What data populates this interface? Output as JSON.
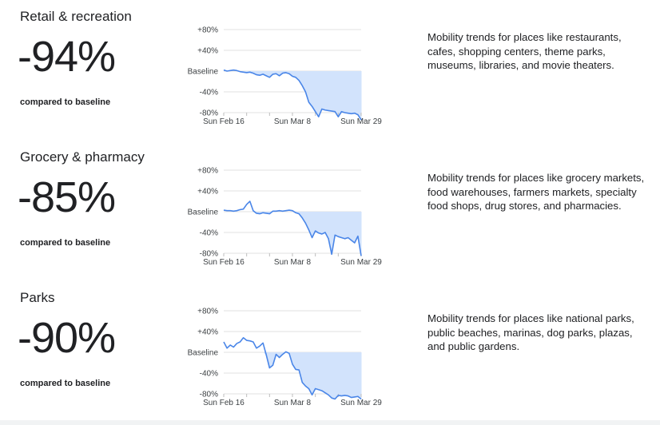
{
  "sections": [
    {
      "title": "Retail & recreation",
      "value": "-94%",
      "caption": "compared to baseline",
      "description": "Mobility trends for places like restaurants, cafes, shopping centers, theme parks, museums, libraries, and movie theaters."
    },
    {
      "title": "Grocery & pharmacy",
      "value": "-85%",
      "caption": "compared to baseline",
      "description": "Mobility trends for places like grocery markets, food warehouses, farmers markets, specialty food shops, drug stores, and pharmacies."
    },
    {
      "title": "Parks",
      "value": "-90%",
      "caption": "compared to baseline",
      "description": "Mobility trends for places like national parks, public beaches, marinas, dog parks, plazas, and public gardens."
    }
  ],
  "colors": {
    "line": "#4a86e8",
    "fill": "#d2e3fc",
    "grid": "#e0e0e0"
  },
  "chart_data": [
    {
      "type": "line",
      "title": "",
      "x_tick_labels": [
        "Sun Feb 16",
        "Sun Mar 8",
        "Sun Mar 29"
      ],
      "y_tick_labels": [
        "+80%",
        "+40%",
        "Baseline",
        "-40%",
        "-80%"
      ],
      "y_ticks": [
        80,
        40,
        0,
        -40,
        -80
      ],
      "ylim": [
        -80,
        80
      ],
      "x": [
        "2020-02-16",
        "2020-02-17",
        "2020-02-18",
        "2020-02-19",
        "2020-02-20",
        "2020-02-21",
        "2020-02-22",
        "2020-02-23",
        "2020-02-24",
        "2020-02-25",
        "2020-02-26",
        "2020-02-27",
        "2020-02-28",
        "2020-02-29",
        "2020-03-01",
        "2020-03-02",
        "2020-03-03",
        "2020-03-04",
        "2020-03-05",
        "2020-03-06",
        "2020-03-07",
        "2020-03-08",
        "2020-03-09",
        "2020-03-10",
        "2020-03-11",
        "2020-03-12",
        "2020-03-13",
        "2020-03-14",
        "2020-03-15",
        "2020-03-16",
        "2020-03-17",
        "2020-03-18",
        "2020-03-19",
        "2020-03-20",
        "2020-03-21",
        "2020-03-22",
        "2020-03-23",
        "2020-03-24",
        "2020-03-25",
        "2020-03-26",
        "2020-03-27",
        "2020-03-28",
        "2020-03-29"
      ],
      "values": [
        2,
        0,
        1,
        2,
        1,
        -1,
        -2,
        -3,
        -2,
        -4,
        -7,
        -8,
        -6,
        -9,
        -12,
        -6,
        -5,
        -9,
        -4,
        -3,
        -5,
        -10,
        -12,
        -18,
        -28,
        -40,
        -60,
        -68,
        -78,
        -88,
        -73,
        -75,
        -76,
        -77,
        -78,
        -88,
        -78,
        -80,
        -81,
        -82,
        -81,
        -84,
        -94
      ],
      "grid": true,
      "baseline_fill": true
    },
    {
      "type": "line",
      "title": "",
      "x_tick_labels": [
        "Sun Feb 16",
        "Sun Mar 8",
        "Sun Mar 29"
      ],
      "y_tick_labels": [
        "+80%",
        "+40%",
        "Baseline",
        "-40%",
        "-80%"
      ],
      "y_ticks": [
        80,
        40,
        0,
        -40,
        -80
      ],
      "ylim": [
        -80,
        80
      ],
      "x": [
        "2020-02-16",
        "2020-02-17",
        "2020-02-18",
        "2020-02-19",
        "2020-02-20",
        "2020-02-21",
        "2020-02-22",
        "2020-02-23",
        "2020-02-24",
        "2020-02-25",
        "2020-02-26",
        "2020-02-27",
        "2020-02-28",
        "2020-02-29",
        "2020-03-01",
        "2020-03-02",
        "2020-03-03",
        "2020-03-04",
        "2020-03-05",
        "2020-03-06",
        "2020-03-07",
        "2020-03-08",
        "2020-03-09",
        "2020-03-10",
        "2020-03-11",
        "2020-03-12",
        "2020-03-13",
        "2020-03-14",
        "2020-03-15",
        "2020-03-16",
        "2020-03-17",
        "2020-03-18",
        "2020-03-19",
        "2020-03-20",
        "2020-03-21",
        "2020-03-22",
        "2020-03-23",
        "2020-03-24",
        "2020-03-25",
        "2020-03-26",
        "2020-03-27",
        "2020-03-28",
        "2020-03-29"
      ],
      "values": [
        3,
        2,
        2,
        1,
        2,
        4,
        5,
        14,
        20,
        2,
        -3,
        -4,
        -2,
        -3,
        -4,
        1,
        1,
        2,
        1,
        2,
        3,
        2,
        -2,
        -4,
        -12,
        -22,
        -35,
        -50,
        -37,
        -41,
        -43,
        -40,
        -52,
        -82,
        -45,
        -48,
        -50,
        -52,
        -50,
        -55,
        -60,
        -47,
        -85
      ],
      "grid": true,
      "baseline_fill": true
    },
    {
      "type": "line",
      "title": "",
      "x_tick_labels": [
        "Sun Feb 16",
        "Sun Mar 8",
        "Sun Mar 29"
      ],
      "y_tick_labels": [
        "+80%",
        "+40%",
        "Baseline",
        "-40%",
        "-80%"
      ],
      "y_ticks": [
        80,
        40,
        0,
        -40,
        -80
      ],
      "ylim": [
        -80,
        80
      ],
      "x": [
        "2020-02-16",
        "2020-02-17",
        "2020-02-18",
        "2020-02-19",
        "2020-02-20",
        "2020-02-21",
        "2020-02-22",
        "2020-02-23",
        "2020-02-24",
        "2020-02-25",
        "2020-02-26",
        "2020-02-27",
        "2020-02-28",
        "2020-02-29",
        "2020-03-01",
        "2020-03-02",
        "2020-03-03",
        "2020-03-04",
        "2020-03-05",
        "2020-03-06",
        "2020-03-07",
        "2020-03-08",
        "2020-03-09",
        "2020-03-10",
        "2020-03-11",
        "2020-03-12",
        "2020-03-13",
        "2020-03-14",
        "2020-03-15",
        "2020-03-16",
        "2020-03-17",
        "2020-03-18",
        "2020-03-19",
        "2020-03-20",
        "2020-03-21",
        "2020-03-22",
        "2020-03-23",
        "2020-03-24",
        "2020-03-25",
        "2020-03-26",
        "2020-03-27",
        "2020-03-28",
        "2020-03-29"
      ],
      "values": [
        20,
        8,
        14,
        10,
        17,
        20,
        28,
        23,
        22,
        20,
        8,
        12,
        18,
        -5,
        -30,
        -25,
        -4,
        -10,
        -4,
        1,
        -2,
        -23,
        -33,
        -34,
        -58,
        -65,
        -70,
        -82,
        -70,
        -72,
        -74,
        -78,
        -82,
        -88,
        -90,
        -83,
        -84,
        -83,
        -84,
        -87,
        -86,
        -85,
        -90
      ],
      "grid": true,
      "baseline_fill": true
    }
  ]
}
